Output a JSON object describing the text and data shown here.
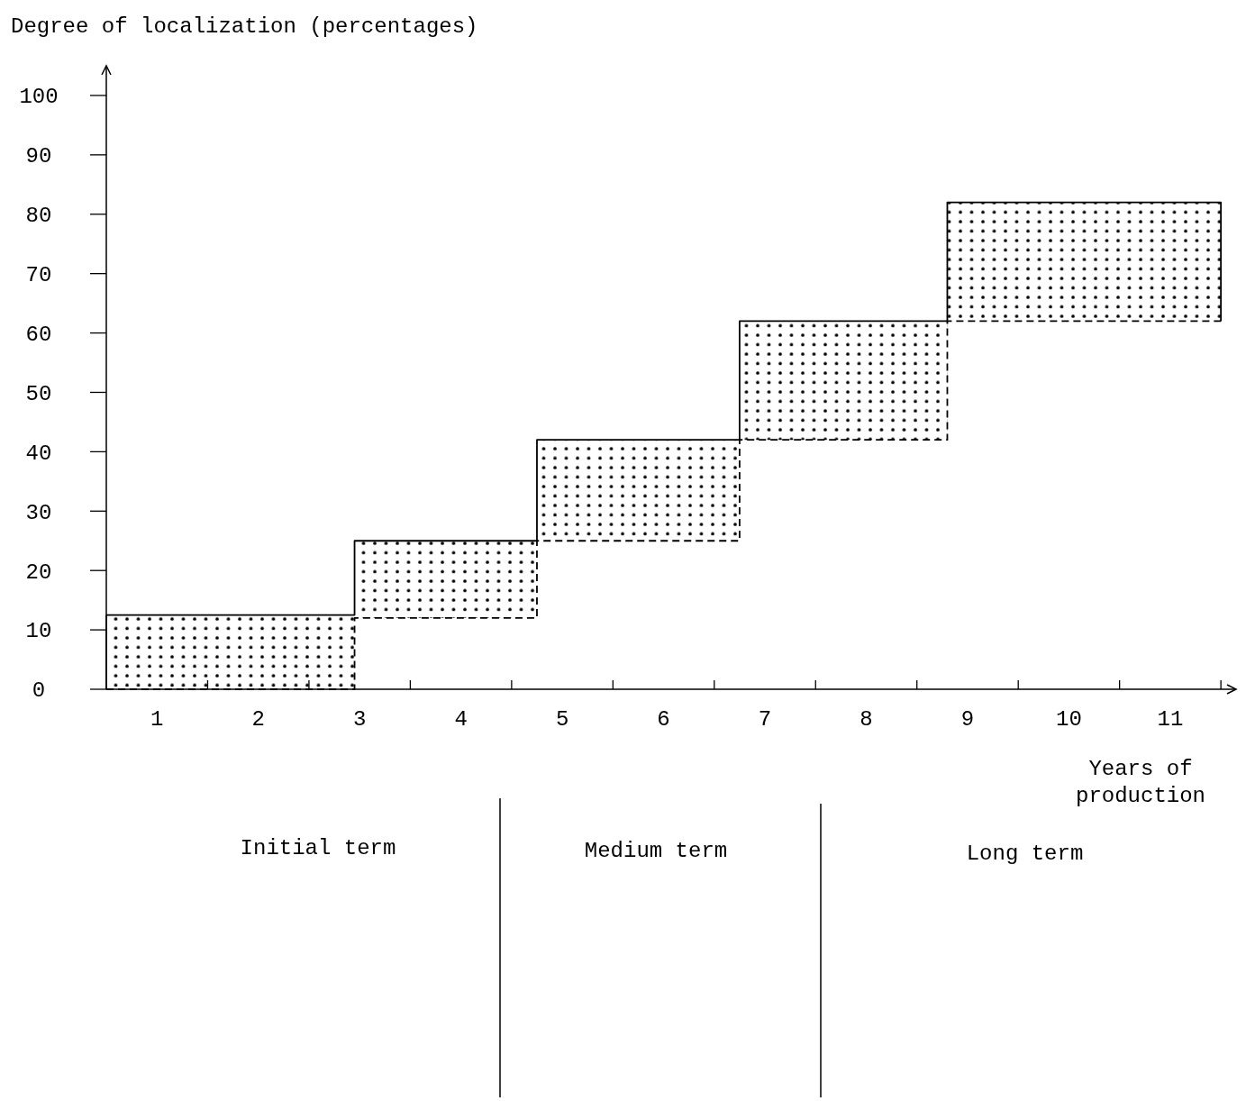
{
  "chart_data": {
    "type": "step",
    "ylabel": "Degree of localization (percentages)",
    "xlabel": "Years of production",
    "xlim": [
      0,
      11.15
    ],
    "ylim": [
      0,
      105
    ],
    "xticks": [
      {
        "value": 0.5,
        "label": "1"
      },
      {
        "value": 1,
        "label": null
      },
      {
        "value": 1.5,
        "label": "2"
      },
      {
        "value": 2,
        "label": null
      },
      {
        "value": 2.5,
        "label": "3"
      },
      {
        "value": 3,
        "label": null
      },
      {
        "value": 3.5,
        "label": "4"
      },
      {
        "value": 4,
        "label": null
      },
      {
        "value": 4.5,
        "label": "5"
      },
      {
        "value": 5,
        "label": null
      },
      {
        "value": 5.5,
        "label": "6"
      },
      {
        "value": 6,
        "label": null
      },
      {
        "value": 6.5,
        "label": "7"
      },
      {
        "value": 7,
        "label": null
      },
      {
        "value": 7.5,
        "label": "8"
      },
      {
        "value": 8,
        "label": null
      },
      {
        "value": 8.5,
        "label": "9"
      },
      {
        "value": 9,
        "label": null
      },
      {
        "value": 9.5,
        "label": "10"
      },
      {
        "value": 10,
        "label": null
      },
      {
        "value": 10.5,
        "label": "11"
      },
      {
        "value": 11,
        "label": null
      }
    ],
    "yticks": [
      0,
      10,
      20,
      30,
      40,
      50,
      60,
      70,
      80,
      90,
      100
    ],
    "series": [
      {
        "color": "#000000",
        "line_style": "solid",
        "x": [
          0,
          2.45,
          4.25,
          6.25,
          8.3,
          11
        ],
        "values": [
          12.5,
          25,
          42,
          62,
          82,
          62
        ],
        "lower": [
          0,
          12,
          25,
          42,
          62,
          62
        ],
        "upper": [
          12.5,
          25,
          42,
          62,
          82,
          82
        ]
      },
      {
        "color": "#000000",
        "line_style": "dashed",
        "x": [
          0,
          2.45,
          4.25,
          6.25,
          8.3,
          11
        ],
        "values": [
          0,
          12,
          25,
          42,
          62,
          62
        ]
      }
    ],
    "annotations": [
      "Initial term",
      "Medium term",
      "Long term"
    ]
  }
}
